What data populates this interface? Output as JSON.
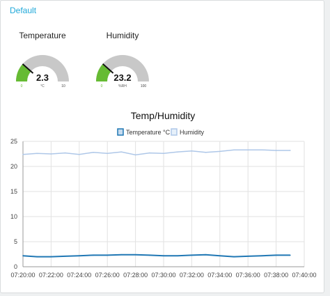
{
  "group": {
    "title": "Default"
  },
  "gauges": [
    {
      "title": "Temperature",
      "value": "2.3",
      "unit": "°C",
      "min": "0",
      "max": "10",
      "fraction": 0.23,
      "color": "#66bb33"
    },
    {
      "title": "Humidity",
      "value": "23.2",
      "unit": "%RH",
      "min": "0",
      "max": "100",
      "fraction": 0.232,
      "color": "#66bb33"
    }
  ],
  "colors": {
    "gauge_track": "#c8c8c8",
    "accent": "#1fa8d9",
    "grid": "#e2e2e2"
  },
  "chart_data": {
    "type": "line",
    "title": "Temp/Humidity",
    "xlabel": "",
    "ylabel": "",
    "ylim": [
      0,
      25
    ],
    "yticks": [
      "0",
      "5",
      "10",
      "15",
      "20",
      "25"
    ],
    "xlim": [
      "07:20:00",
      "07:40:00"
    ],
    "xticks": [
      "07:20:00",
      "07:22:00",
      "07:24:00",
      "07:26:00",
      "07:28:00",
      "07:30:00",
      "07:32:00",
      "07:34:00",
      "07:36:00",
      "07:38:00",
      "07:40:00"
    ],
    "legend_position": "top-center",
    "grid": true,
    "series": [
      {
        "name": "Temperature °C",
        "color": "#1f77b4",
        "x": [
          "07:20:00",
          "07:21:00",
          "07:22:00",
          "07:23:00",
          "07:24:00",
          "07:25:00",
          "07:26:00",
          "07:27:00",
          "07:28:00",
          "07:29:00",
          "07:30:00",
          "07:31:00",
          "07:32:00",
          "07:33:00",
          "07:34:00",
          "07:35:00",
          "07:36:00",
          "07:37:00",
          "07:38:00",
          "07:39:00"
        ],
        "values": [
          2.2,
          2.0,
          2.0,
          2.1,
          2.2,
          2.3,
          2.3,
          2.4,
          2.4,
          2.3,
          2.2,
          2.2,
          2.3,
          2.4,
          2.2,
          2.0,
          2.1,
          2.2,
          2.3,
          2.3
        ]
      },
      {
        "name": "Humidity",
        "color": "#aec7e8",
        "x": [
          "07:20:00",
          "07:21:00",
          "07:22:00",
          "07:23:00",
          "07:24:00",
          "07:25:00",
          "07:26:00",
          "07:27:00",
          "07:28:00",
          "07:29:00",
          "07:30:00",
          "07:31:00",
          "07:32:00",
          "07:33:00",
          "07:34:00",
          "07:35:00",
          "07:36:00",
          "07:37:00",
          "07:38:00",
          "07:39:00"
        ],
        "values": [
          22.4,
          22.6,
          22.5,
          22.7,
          22.4,
          22.8,
          22.6,
          22.9,
          22.3,
          22.7,
          22.6,
          22.9,
          23.1,
          22.8,
          23.0,
          23.3,
          23.3,
          23.3,
          23.2,
          23.2
        ]
      }
    ]
  }
}
